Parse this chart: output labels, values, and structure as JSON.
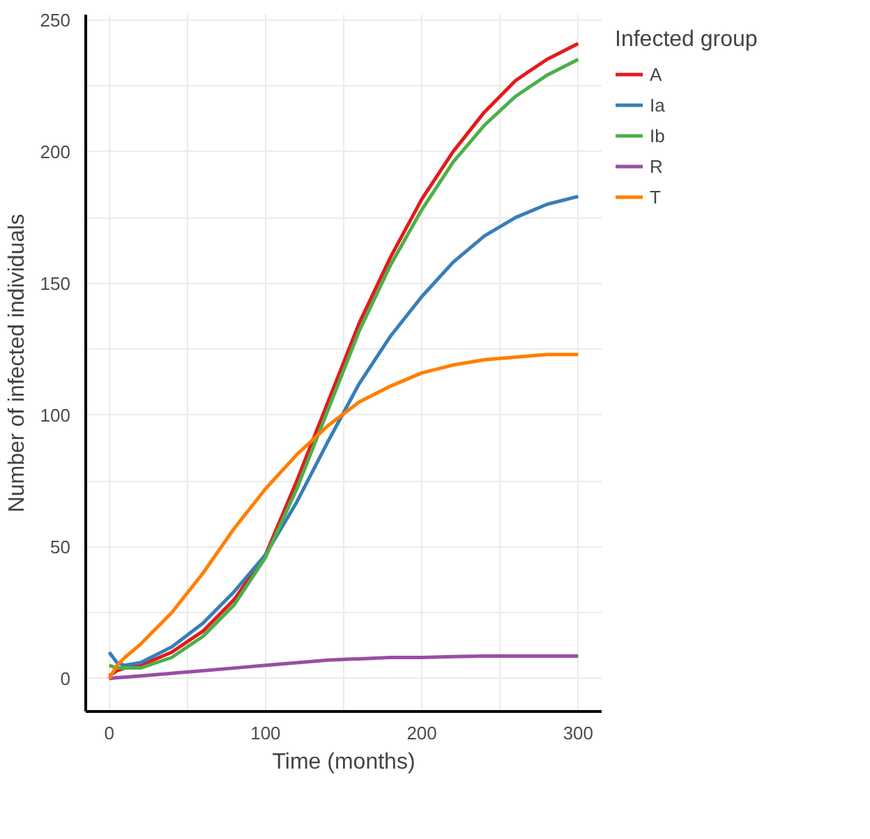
{
  "chart_data": {
    "type": "line",
    "xlabel": "Time (months)",
    "ylabel": "Number of infected individuals",
    "legend_title": "Infected group",
    "legend": "right",
    "grid": true,
    "line_style": "solid",
    "xlim": [
      -15,
      315
    ],
    "ylim": [
      -12.5,
      252
    ],
    "xticks": [
      0,
      {
        "value": 50,
        "label": null
      },
      100,
      {
        "value": 150,
        "label": null
      },
      200,
      {
        "value": 250,
        "label": null
      },
      300
    ],
    "yticks": [
      0,
      {
        "value": 25,
        "label": null
      },
      50,
      {
        "value": 75,
        "label": null
      },
      100,
      {
        "value": 125,
        "label": null
      },
      150,
      {
        "value": 175,
        "label": null
      },
      200,
      {
        "value": 225,
        "label": null
      },
      250
    ],
    "x": [
      0,
      5,
      10,
      20,
      40,
      60,
      80,
      100,
      120,
      140,
      160,
      180,
      200,
      220,
      240,
      260,
      280,
      300
    ],
    "series": [
      {
        "name": "A",
        "color": "#e41a1c",
        "values": [
          1,
          3,
          4,
          5,
          10,
          18,
          30,
          47,
          75,
          105,
          135,
          160,
          182,
          200,
          215,
          227,
          235,
          241
        ]
      },
      {
        "name": "Ia",
        "color": "#377eb8",
        "values": [
          10,
          6,
          5,
          6,
          12,
          21,
          33,
          47,
          67,
          90,
          112,
          130,
          145,
          158,
          168,
          175,
          180,
          183
        ]
      },
      {
        "name": "Ib",
        "color": "#4daf4a",
        "values": [
          5,
          4,
          4,
          4,
          8,
          16,
          28,
          46,
          72,
          102,
          132,
          157,
          178,
          196,
          210,
          221,
          229,
          235
        ]
      },
      {
        "name": "R",
        "color": "#984ea3",
        "values": [
          0,
          0.3,
          0.5,
          1,
          2,
          3,
          4,
          5,
          6,
          7,
          7.5,
          8,
          8,
          8.3,
          8.5,
          8.5,
          8.5,
          8.5
        ]
      },
      {
        "name": "T",
        "color": "#ff7f00",
        "values": [
          0,
          5,
          8,
          13,
          25,
          40,
          57,
          72,
          85,
          96,
          105,
          111,
          116,
          119,
          121,
          122,
          123,
          123
        ]
      }
    ]
  }
}
